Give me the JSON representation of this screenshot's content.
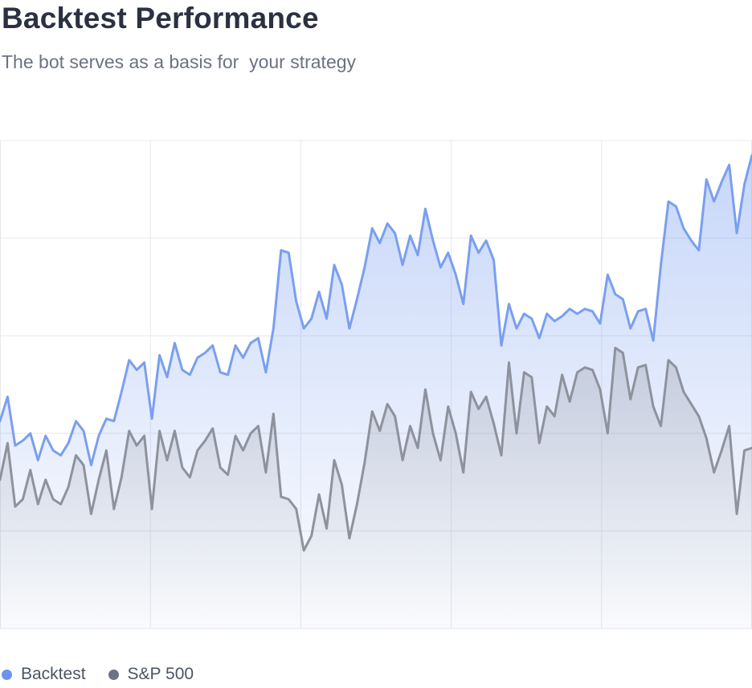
{
  "header": {
    "title": "Backtest Performance",
    "subtitle": "The bot serves as a basis for  your strategy"
  },
  "colors": {
    "backtest": "#7a9ff0",
    "sp500": "#8e929c",
    "grid": "#e6e8ec"
  },
  "chart_data": {
    "type": "area",
    "title": "Backtest Performance",
    "subtitle": "The bot serves as a basis for  your strategy",
    "xlabel": "",
    "ylabel": "",
    "ylim": [
      0,
      100
    ],
    "grid": true,
    "legend_position": "bottom-left",
    "series": [
      {
        "name": "Backtest",
        "color": "#7a9ff0",
        "values": [
          42.5,
          47.5,
          37.5,
          38.5,
          40.0,
          34.5,
          39.5,
          36.5,
          35.5,
          38.0,
          42.5,
          40.5,
          33.5,
          39.5,
          43.0,
          42.5,
          48.5,
          55.0,
          53.0,
          54.5,
          43.0,
          56.0,
          51.5,
          58.5,
          53.0,
          52.0,
          55.5,
          56.5,
          58.0,
          52.5,
          52.0,
          58.0,
          55.5,
          58.5,
          59.5,
          52.5,
          61.5,
          77.5,
          77.0,
          67.0,
          61.5,
          63.5,
          69.0,
          63.5,
          74.5,
          70.5,
          61.5,
          67.5,
          74.0,
          82.0,
          79.0,
          83.0,
          81.0,
          74.5,
          80.5,
          76.5,
          86.0,
          79.5,
          74.0,
          77.0,
          72.5,
          66.5,
          80.5,
          77.0,
          79.5,
          75.5,
          58.0,
          66.5,
          61.5,
          64.5,
          63.5,
          59.5,
          64.5,
          63.0,
          64.0,
          65.5,
          64.5,
          65.5,
          65.0,
          62.5,
          72.5,
          68.5,
          67.5,
          61.5,
          65.0,
          65.5,
          59.0,
          74.5,
          87.5,
          86.5,
          82.0,
          79.5,
          77.5,
          92.0,
          87.5,
          91.5,
          95.0,
          81.0,
          91.0,
          97.0
        ]
      },
      {
        "name": "S&P 500",
        "color": "#8e929c",
        "values": [
          30.5,
          38.0,
          25.0,
          26.5,
          32.5,
          25.5,
          30.5,
          26.5,
          25.5,
          29.0,
          35.5,
          33.5,
          23.5,
          30.5,
          36.5,
          24.5,
          31.0,
          40.5,
          37.5,
          39.5,
          24.5,
          40.5,
          34.5,
          40.5,
          33.0,
          31.0,
          36.5,
          38.5,
          41.0,
          33.0,
          31.5,
          39.5,
          36.5,
          40.0,
          41.5,
          32.0,
          44.0,
          27.0,
          26.5,
          24.5,
          16.0,
          19.0,
          27.5,
          20.5,
          34.5,
          29.5,
          18.5,
          25.5,
          34.0,
          44.5,
          40.5,
          46.0,
          43.5,
          34.5,
          41.5,
          37.0,
          49.0,
          40.0,
          34.5,
          45.5,
          40.0,
          32.0,
          48.5,
          45.0,
          47.5,
          42.0,
          35.5,
          54.5,
          40.0,
          52.5,
          51.5,
          38.0,
          45.5,
          43.5,
          52.0,
          46.5,
          52.5,
          53.5,
          53.0,
          49.0,
          40.0,
          57.5,
          56.5,
          47.0,
          53.5,
          54.0,
          45.5,
          41.5,
          55.0,
          53.5,
          48.5,
          46.0,
          43.5,
          39.0,
          32.0,
          36.5,
          41.5,
          23.5,
          36.5,
          37.0
        ]
      }
    ],
    "legend": [
      "Backtest",
      "S&P 500"
    ]
  }
}
